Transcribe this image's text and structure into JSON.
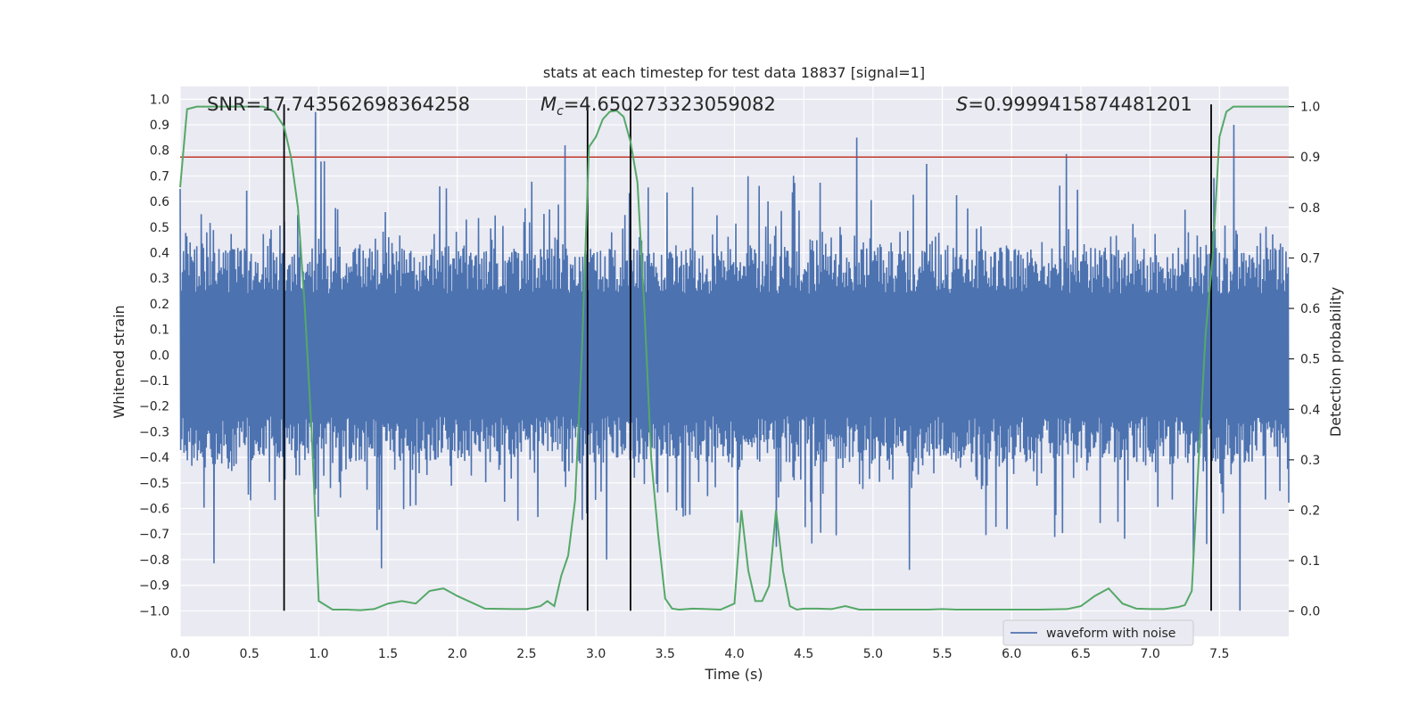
{
  "chart_data": {
    "type": "line",
    "title": "stats at each timestep for test data 18837 [signal=1]",
    "xlabel": "Time (s)",
    "ylabel_left": "Whitened strain",
    "ylabel_right": "Detection probability",
    "xlim": [
      0.0,
      8.0
    ],
    "ylim_left": [
      -1.1,
      1.05
    ],
    "ylim_right": [
      -0.05,
      1.04
    ],
    "xticks": [
      "0.0",
      "0.5",
      "1.0",
      "1.5",
      "2.0",
      "2.5",
      "3.0",
      "3.5",
      "4.0",
      "4.5",
      "5.0",
      "5.5",
      "6.0",
      "6.5",
      "7.0",
      "7.5"
    ],
    "xtick_values": [
      0.0,
      0.5,
      1.0,
      1.5,
      2.0,
      2.5,
      3.0,
      3.5,
      4.0,
      4.5,
      5.0,
      5.5,
      6.0,
      6.5,
      7.0,
      7.5
    ],
    "yticks_left": [
      "1.0",
      "0.9",
      "0.8",
      "0.7",
      "0.6",
      "0.5",
      "0.4",
      "0.3",
      "0.2",
      "0.1",
      "0.0",
      "−0.1",
      "−0.2",
      "−0.3",
      "−0.4",
      "−0.5",
      "−0.6",
      "−0.7",
      "−0.8",
      "−0.9",
      "−1.0"
    ],
    "ytick_values_left": [
      1.0,
      0.9,
      0.8,
      0.7,
      0.6,
      0.5,
      0.4,
      0.3,
      0.2,
      0.1,
      0.0,
      -0.1,
      -0.2,
      -0.3,
      -0.4,
      -0.5,
      -0.6,
      -0.7,
      -0.8,
      -0.9,
      -1.0
    ],
    "yticks_right": [
      "1.0",
      "0.9",
      "0.8",
      "0.7",
      "0.6",
      "0.5",
      "0.4",
      "0.3",
      "0.2",
      "0.1",
      "0.0"
    ],
    "ytick_values_right": [
      1.0,
      0.9,
      0.8,
      0.7,
      0.6,
      0.5,
      0.4,
      0.3,
      0.2,
      0.1,
      0.0
    ],
    "annotations": {
      "snr": "SNR=17.743562698364258",
      "mc_symbol": "M",
      "mc_sub": "c",
      "mc_value": "=4.650273323059082",
      "s_symbol": "S",
      "s_value": "=0.9999415874481201"
    },
    "threshold": {
      "value": 0.9,
      "axis": "right",
      "color": "#c0392b"
    },
    "vertical_lines": [
      0.75,
      2.94,
      3.25,
      7.44
    ],
    "series": [
      {
        "name": "waveform with noise",
        "axis": "left",
        "color": "#4c72b0",
        "description": "noisy whitened strain, approx. range -1.0 to 0.95",
        "spikes": [
          [
            0.98,
            0.95
          ],
          [
            7.65,
            -1.0
          ],
          [
            5.26,
            -0.84
          ],
          [
            4.88,
            0.85
          ],
          [
            7.6,
            0.9
          ],
          [
            2.78,
            0.82
          ],
          [
            4.3,
            -0.75
          ]
        ]
      },
      {
        "name": "detection probability",
        "axis": "right",
        "color": "#55a868",
        "x": [
          0.0,
          0.05,
          0.12,
          0.2,
          0.3,
          0.4,
          0.5,
          0.6,
          0.68,
          0.75,
          0.8,
          0.85,
          0.9,
          0.95,
          1.0,
          1.1,
          1.2,
          1.3,
          1.4,
          1.5,
          1.6,
          1.7,
          1.8,
          1.9,
          2.0,
          2.2,
          2.4,
          2.5,
          2.6,
          2.65,
          2.7,
          2.75,
          2.8,
          2.85,
          2.9,
          2.95,
          3.0,
          3.05,
          3.1,
          3.15,
          3.2,
          3.25,
          3.3,
          3.35,
          3.4,
          3.45,
          3.5,
          3.55,
          3.6,
          3.7,
          3.8,
          3.9,
          4.0,
          4.05,
          4.1,
          4.15,
          4.2,
          4.25,
          4.3,
          4.35,
          4.4,
          4.45,
          4.5,
          4.6,
          4.7,
          4.8,
          4.9,
          5.0,
          5.2,
          5.4,
          5.5,
          5.6,
          5.8,
          6.0,
          6.2,
          6.4,
          6.5,
          6.6,
          6.7,
          6.8,
          6.9,
          7.0,
          7.1,
          7.2,
          7.25,
          7.3,
          7.35,
          7.4,
          7.45,
          7.5,
          7.55,
          7.6,
          7.7,
          7.8,
          7.9,
          8.0
        ],
        "y": [
          0.84,
          0.995,
          1.0,
          1.0,
          1.0,
          1.0,
          1.0,
          1.0,
          0.99,
          0.96,
          0.9,
          0.8,
          0.6,
          0.35,
          0.02,
          0.003,
          0.003,
          0.002,
          0.004,
          0.015,
          0.02,
          0.015,
          0.04,
          0.045,
          0.03,
          0.005,
          0.004,
          0.004,
          0.01,
          0.02,
          0.01,
          0.07,
          0.11,
          0.22,
          0.52,
          0.92,
          0.94,
          0.975,
          0.99,
          0.992,
          0.98,
          0.93,
          0.85,
          0.6,
          0.3,
          0.15,
          0.025,
          0.005,
          0.003,
          0.005,
          0.004,
          0.003,
          0.015,
          0.2,
          0.08,
          0.02,
          0.02,
          0.05,
          0.2,
          0.08,
          0.01,
          0.003,
          0.005,
          0.005,
          0.004,
          0.01,
          0.003,
          0.003,
          0.003,
          0.003,
          0.004,
          0.003,
          0.003,
          0.003,
          0.003,
          0.004,
          0.01,
          0.03,
          0.045,
          0.015,
          0.005,
          0.004,
          0.004,
          0.008,
          0.012,
          0.04,
          0.3,
          0.55,
          0.7,
          0.94,
          0.99,
          1.0,
          1.0,
          1.0,
          1.0,
          1.0
        ]
      }
    ],
    "legend": {
      "entries": [
        "waveform with noise"
      ],
      "placement": "lower-right"
    }
  }
}
